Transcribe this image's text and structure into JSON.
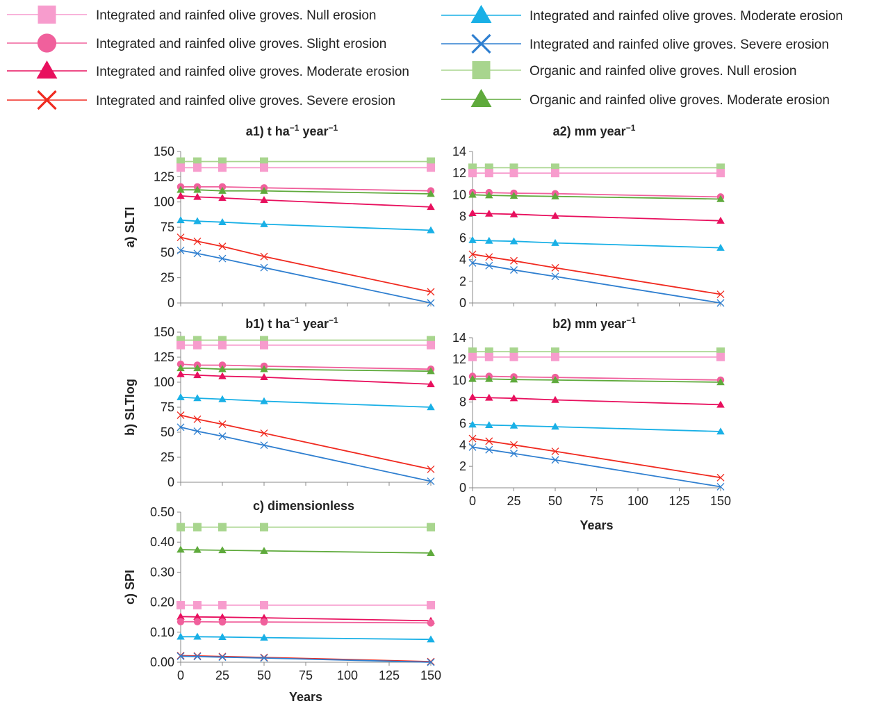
{
  "legend": [
    {
      "label": "Integrated and rainfed olive groves. Null erosion",
      "color": "#f79ccd",
      "marker": "square"
    },
    {
      "label": "Integrated and rainfed olive groves. Slight erosion",
      "color": "#f0609c",
      "marker": "circle"
    },
    {
      "label": "Integrated and rainfed olive groves. Moderate erosion",
      "color": "#e8105e",
      "marker": "triangle"
    },
    {
      "label": "Integrated and rainfed olive groves. Severe erosion",
      "color": "#f02a20",
      "marker": "x"
    },
    {
      "label": "Integrated and rainfed olive groves. Moderate erosion",
      "color": "#19b0e6",
      "marker": "triangle"
    },
    {
      "label": "Integrated and rainfed olive groves. Severe erosion",
      "color": "#2f7fd0",
      "marker": "x"
    },
    {
      "label": "Organic and rainfed olive groves. Null erosion",
      "color": "#a8d58e",
      "marker": "square"
    },
    {
      "label": "Organic and rainfed olive groves. Moderate erosion",
      "color": "#5faa3c",
      "marker": "triangle"
    }
  ],
  "chart_data": [
    {
      "id": "a1",
      "type": "line",
      "title": "a1) t ha",
      "title_sup1": "−1",
      "title_mid": " year",
      "title_sup2": "−1",
      "ylabel": "a) SLTI",
      "xlabel": "",
      "ylim": [
        0,
        150
      ],
      "yticks": [
        "0",
        "25",
        "50",
        "75",
        "100",
        "125",
        "150"
      ],
      "xlim": [
        0,
        150
      ],
      "xticks": [
        "0",
        "25",
        "50",
        "75",
        "100",
        "125",
        "150"
      ],
      "show_xticks": false,
      "grid": false,
      "x": [
        0,
        10,
        25,
        50,
        150
      ],
      "series": [
        {
          "name": "Organic and rainfed olive groves. Null erosion",
          "color": "#a8d58e",
          "marker": "square",
          "values": [
            140,
            140,
            140,
            140,
            140
          ]
        },
        {
          "name": "Integrated and rainfed olive groves. Null erosion",
          "color": "#f79ccd",
          "marker": "square",
          "values": [
            134,
            134,
            134,
            134,
            134
          ]
        },
        {
          "name": "Integrated and rainfed olive groves. Slight erosion",
          "color": "#f0609c",
          "marker": "circle",
          "values": [
            115,
            115,
            115,
            114,
            111
          ]
        },
        {
          "name": "Organic and rainfed olive groves. Moderate erosion",
          "color": "#5faa3c",
          "marker": "triangle",
          "values": [
            112,
            112,
            111,
            111,
            108
          ]
        },
        {
          "name": "Integrated and rainfed olive groves. Moderate erosion",
          "color": "#e8105e",
          "marker": "triangle",
          "values": [
            106,
            105,
            104,
            102,
            95
          ]
        },
        {
          "name": "Integrated and rainfed olive groves. Moderate erosion",
          "color": "#19b0e6",
          "marker": "triangle",
          "values": [
            82,
            81,
            80,
            78,
            72
          ]
        },
        {
          "name": "Integrated and rainfed olive groves. Severe erosion",
          "color": "#f02a20",
          "marker": "x",
          "values": [
            65,
            61,
            56,
            46,
            11
          ]
        },
        {
          "name": "Integrated and rainfed olive groves. Severe erosion",
          "color": "#2f7fd0",
          "marker": "x",
          "values": [
            52,
            49,
            44,
            35,
            0
          ]
        }
      ]
    },
    {
      "id": "a2",
      "type": "line",
      "title": "a2) mm year",
      "title_sup1": "−1",
      "title_mid": "",
      "title_sup2": "",
      "ylabel": "",
      "xlabel": "",
      "ylim": [
        0,
        14
      ],
      "yticks": [
        "0",
        "2",
        "4",
        "6",
        "8",
        "10",
        "12",
        "14"
      ],
      "xlim": [
        0,
        150
      ],
      "xticks": [
        "0",
        "25",
        "50",
        "75",
        "100",
        "125",
        "150"
      ],
      "show_xticks": false,
      "grid": false,
      "x": [
        0,
        10,
        25,
        50,
        150
      ],
      "series": [
        {
          "name": "Organic and rainfed olive groves. Null erosion",
          "color": "#a8d58e",
          "marker": "square",
          "values": [
            12.5,
            12.5,
            12.5,
            12.5,
            12.5
          ]
        },
        {
          "name": "Integrated and rainfed olive groves. Null erosion",
          "color": "#f79ccd",
          "marker": "square",
          "values": [
            12.0,
            12.0,
            12.0,
            12.0,
            12.0
          ]
        },
        {
          "name": "Integrated and rainfed olive groves. Slight erosion",
          "color": "#f0609c",
          "marker": "circle",
          "values": [
            10.2,
            10.2,
            10.15,
            10.1,
            9.8
          ]
        },
        {
          "name": "Organic and rainfed olive groves. Moderate erosion",
          "color": "#5faa3c",
          "marker": "triangle",
          "values": [
            10.0,
            9.95,
            9.9,
            9.85,
            9.6
          ]
        },
        {
          "name": "Integrated and rainfed olive groves. Moderate erosion",
          "color": "#e8105e",
          "marker": "triangle",
          "values": [
            8.3,
            8.25,
            8.2,
            8.05,
            7.6
          ]
        },
        {
          "name": "Integrated and rainfed olive groves. Moderate erosion",
          "color": "#19b0e6",
          "marker": "triangle",
          "values": [
            5.8,
            5.75,
            5.7,
            5.55,
            5.1
          ]
        },
        {
          "name": "Integrated and rainfed olive groves. Severe erosion",
          "color": "#f02a20",
          "marker": "x",
          "values": [
            4.5,
            4.25,
            3.9,
            3.25,
            0.8
          ]
        },
        {
          "name": "Integrated and rainfed olive groves. Severe erosion",
          "color": "#2f7fd0",
          "marker": "x",
          "values": [
            3.7,
            3.45,
            3.05,
            2.45,
            0
          ]
        }
      ]
    },
    {
      "id": "b1",
      "type": "line",
      "title": "b1) t ha",
      "title_sup1": "−1",
      "title_mid": " year",
      "title_sup2": "−1",
      "ylabel": "b) SLTIog",
      "xlabel": "",
      "ylim": [
        0,
        150
      ],
      "yticks": [
        "0",
        "25",
        "50",
        "75",
        "100",
        "125",
        "150"
      ],
      "xlim": [
        0,
        150
      ],
      "xticks": [
        "0",
        "25",
        "50",
        "75",
        "100",
        "125",
        "150"
      ],
      "show_xticks": false,
      "grid": false,
      "x": [
        0,
        10,
        25,
        50,
        150
      ],
      "series": [
        {
          "name": "Organic and rainfed olive groves. Null erosion",
          "color": "#a8d58e",
          "marker": "square",
          "values": [
            142,
            142,
            142,
            142,
            142
          ]
        },
        {
          "name": "Integrated and rainfed olive groves. Null erosion",
          "color": "#f79ccd",
          "marker": "square",
          "values": [
            137,
            137,
            137,
            137,
            137
          ]
        },
        {
          "name": "Integrated and rainfed olive groves. Slight erosion",
          "color": "#f0609c",
          "marker": "circle",
          "values": [
            118,
            117,
            117,
            116,
            113
          ]
        },
        {
          "name": "Organic and rainfed olive groves. Moderate erosion",
          "color": "#5faa3c",
          "marker": "triangle",
          "values": [
            114,
            114,
            113,
            113,
            111
          ]
        },
        {
          "name": "Integrated and rainfed olive groves. Moderate erosion",
          "color": "#e8105e",
          "marker": "triangle",
          "values": [
            108,
            107,
            106,
            105,
            98
          ]
        },
        {
          "name": "Integrated and rainfed olive groves. Moderate erosion",
          "color": "#19b0e6",
          "marker": "triangle",
          "values": [
            85,
            84,
            83,
            81,
            75
          ]
        },
        {
          "name": "Integrated and rainfed olive groves. Severe erosion",
          "color": "#f02a20",
          "marker": "x",
          "values": [
            67,
            63,
            58,
            49,
            13
          ]
        },
        {
          "name": "Integrated and rainfed olive groves. Severe erosion",
          "color": "#2f7fd0",
          "marker": "x",
          "values": [
            55,
            51,
            46,
            37,
            1
          ]
        }
      ]
    },
    {
      "id": "b2",
      "type": "line",
      "title": "b2) mm year",
      "title_sup1": "−1",
      "title_mid": "",
      "title_sup2": "",
      "ylabel": "",
      "xlabel": "Years",
      "ylim": [
        0,
        14
      ],
      "yticks": [
        "0",
        "2",
        "4",
        "6",
        "8",
        "10",
        "12",
        "14"
      ],
      "xlim": [
        0,
        150
      ],
      "xticks": [
        "0",
        "25",
        "50",
        "75",
        "100",
        "125",
        "150"
      ],
      "show_xticks": true,
      "grid": false,
      "x": [
        0,
        10,
        25,
        50,
        150
      ],
      "series": [
        {
          "name": "Organic and rainfed olive groves. Null erosion",
          "color": "#a8d58e",
          "marker": "square",
          "values": [
            12.7,
            12.7,
            12.7,
            12.7,
            12.7
          ]
        },
        {
          "name": "Integrated and rainfed olive groves. Null erosion",
          "color": "#f79ccd",
          "marker": "square",
          "values": [
            12.2,
            12.2,
            12.2,
            12.2,
            12.2
          ]
        },
        {
          "name": "Integrated and rainfed olive groves. Slight erosion",
          "color": "#f0609c",
          "marker": "circle",
          "values": [
            10.4,
            10.4,
            10.35,
            10.3,
            10.05
          ]
        },
        {
          "name": "Organic and rainfed olive groves. Moderate erosion",
          "color": "#5faa3c",
          "marker": "triangle",
          "values": [
            10.15,
            10.15,
            10.1,
            10.05,
            9.85
          ]
        },
        {
          "name": "Integrated and rainfed olive groves. Moderate erosion",
          "color": "#e8105e",
          "marker": "triangle",
          "values": [
            8.45,
            8.4,
            8.35,
            8.2,
            7.75
          ]
        },
        {
          "name": "Integrated and rainfed olive groves. Moderate erosion",
          "color": "#19b0e6",
          "marker": "triangle",
          "values": [
            5.9,
            5.85,
            5.8,
            5.7,
            5.25
          ]
        },
        {
          "name": "Integrated and rainfed olive groves. Severe erosion",
          "color": "#f02a20",
          "marker": "x",
          "values": [
            4.6,
            4.35,
            4.0,
            3.4,
            0.95
          ]
        },
        {
          "name": "Integrated and rainfed olive groves. Severe erosion",
          "color": "#2f7fd0",
          "marker": "x",
          "values": [
            3.8,
            3.55,
            3.2,
            2.6,
            0.1
          ]
        }
      ]
    },
    {
      "id": "c",
      "type": "line",
      "title": "c) dimensionless",
      "title_sup1": "",
      "title_mid": "",
      "title_sup2": "",
      "ylabel": "c) SPI",
      "xlabel": "Years",
      "ylim": [
        0,
        0.5
      ],
      "yticks": [
        "0.00",
        "0.10",
        "0.20",
        "0.30",
        "0.40",
        "0.50"
      ],
      "xlim": [
        0,
        150
      ],
      "xticks": [
        "0",
        "25",
        "50",
        "75",
        "100",
        "125",
        "150"
      ],
      "show_xticks": true,
      "grid": false,
      "x": [
        0,
        10,
        25,
        50,
        150
      ],
      "series": [
        {
          "name": "Organic and rainfed olive groves. Null erosion",
          "color": "#a8d58e",
          "marker": "square",
          "values": [
            0.45,
            0.45,
            0.45,
            0.45,
            0.45
          ]
        },
        {
          "name": "Organic and rainfed olive groves. Moderate erosion",
          "color": "#5faa3c",
          "marker": "triangle",
          "values": [
            0.375,
            0.374,
            0.373,
            0.371,
            0.364
          ]
        },
        {
          "name": "Integrated and rainfed olive groves. Null erosion",
          "color": "#f79ccd",
          "marker": "square",
          "values": [
            0.19,
            0.19,
            0.19,
            0.19,
            0.19
          ]
        },
        {
          "name": "Integrated and rainfed olive groves. Moderate erosion",
          "color": "#e8105e",
          "marker": "triangle",
          "values": [
            0.152,
            0.151,
            0.15,
            0.148,
            0.138
          ]
        },
        {
          "name": "Integrated and rainfed olive groves. Slight erosion",
          "color": "#f0609c",
          "marker": "circle",
          "values": [
            0.135,
            0.135,
            0.134,
            0.134,
            0.131
          ]
        },
        {
          "name": "Integrated and rainfed olive groves. Moderate erosion",
          "color": "#19b0e6",
          "marker": "triangle",
          "values": [
            0.085,
            0.085,
            0.084,
            0.082,
            0.076
          ]
        },
        {
          "name": "Integrated and rainfed olive groves. Severe erosion",
          "color": "#f02a20",
          "marker": "x",
          "values": [
            0.022,
            0.021,
            0.019,
            0.016,
            0.002
          ]
        },
        {
          "name": "Integrated and rainfed olive groves. Severe erosion",
          "color": "#2f7fd0",
          "marker": "x",
          "values": [
            0.02,
            0.019,
            0.017,
            0.014,
            0.0
          ]
        }
      ]
    }
  ]
}
